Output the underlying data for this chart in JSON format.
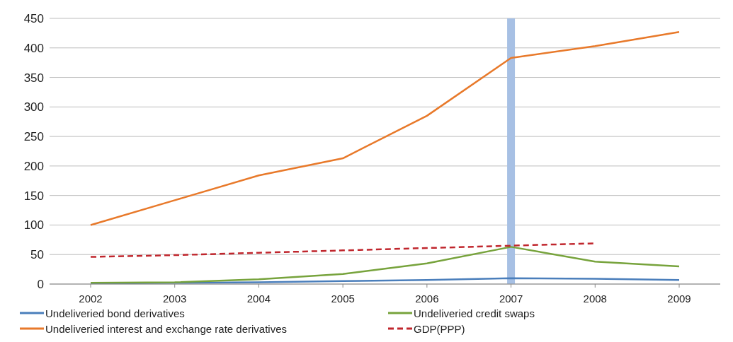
{
  "chart_data": {
    "type": "line",
    "categories": [
      "2002",
      "2003",
      "2004",
      "2005",
      "2006",
      "2007",
      "2008",
      "2009"
    ],
    "series": [
      {
        "name": "Undeliveried bond derivatives",
        "color": "#4a7ebb",
        "values": [
          1,
          2,
          3,
          5,
          7,
          10,
          9,
          7
        ]
      },
      {
        "name": "Undeliveried credit swaps",
        "color": "#77a33c",
        "values": [
          2,
          3,
          8,
          17,
          35,
          63,
          38,
          30
        ]
      },
      {
        "name": "Undeliveried interest and exchange rate derivatives",
        "color": "#e8792a",
        "values": [
          100,
          142,
          184,
          213,
          285,
          383,
          403,
          427
        ]
      },
      {
        "name": "GDP(PPP)",
        "color": "#c0262d",
        "line_style": "dashed",
        "values": [
          46,
          49,
          53,
          57,
          61,
          65,
          69,
          null
        ]
      }
    ],
    "ylim": [
      0,
      450
    ],
    "yticks": [
      0,
      50,
      100,
      150,
      200,
      250,
      300,
      350,
      400,
      450
    ],
    "grid": "y",
    "legend": "bottom",
    "marker": "none",
    "ref_lines": [
      {
        "axis": "x",
        "value": "2007",
        "color": "#a7c0e4"
      }
    ]
  }
}
